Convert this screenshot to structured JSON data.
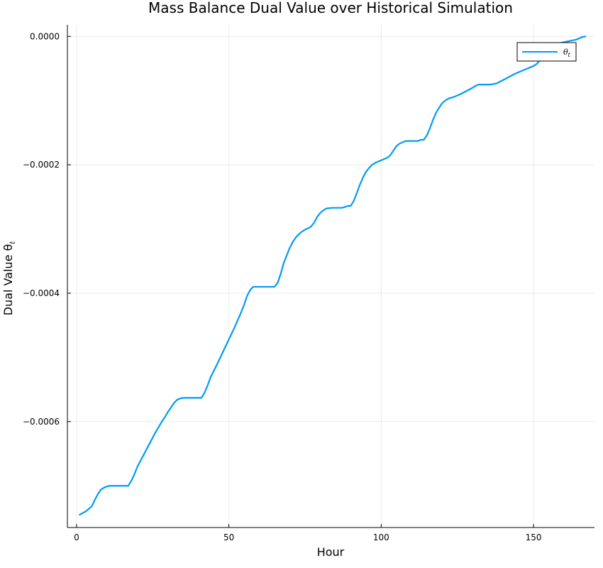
{
  "chart_data": {
    "type": "line",
    "title": "Mass Balance Dual Value over Historical Simulation",
    "xlabel": "Hour",
    "ylabel": "Dual Value θ",
    "ylabel_sub": "t",
    "xlim": [
      -3,
      170
    ],
    "ylim": [
      -0.000765,
      1.8e-05
    ],
    "grid": true,
    "legend_position": "top-right",
    "x_ticks": [
      0,
      50,
      100,
      150
    ],
    "x_tick_labels": [
      "0",
      "50",
      "100",
      "150"
    ],
    "y_ticks": [
      0,
      -0.0002,
      -0.0004,
      -0.0006
    ],
    "y_tick_labels": [
      "0.0000",
      "−0.0002",
      "−0.0004",
      "−0.0006"
    ],
    "series": [
      {
        "name": "θ",
        "name_sub": "t",
        "color": "#009AFA",
        "x": [
          1,
          3,
          5,
          6,
          7,
          8,
          9,
          10,
          11,
          12,
          14,
          16,
          17,
          18,
          19,
          20,
          22,
          24,
          26,
          28,
          29,
          30,
          31,
          32,
          33,
          34,
          35,
          37,
          39,
          41,
          42,
          43,
          44,
          46,
          48,
          50,
          52,
          54,
          55,
          56,
          57,
          58,
          60,
          62,
          64,
          65,
          66,
          67,
          68,
          69,
          70,
          71,
          72,
          73,
          74,
          75,
          76,
          77,
          78,
          79,
          80,
          81,
          82,
          84,
          86,
          87,
          88,
          89,
          90,
          91,
          92,
          93,
          94,
          95,
          96,
          97,
          98,
          100,
          102,
          103,
          104,
          105,
          106,
          107,
          108,
          110,
          111,
          112,
          113,
          114,
          115,
          116,
          117,
          118,
          119,
          120,
          121,
          122,
          124,
          126,
          128,
          130,
          131,
          132,
          134,
          135,
          136,
          138,
          140,
          142,
          144,
          146,
          148,
          149,
          150,
          151,
          152,
          153,
          154,
          155,
          156,
          157,
          158,
          159,
          160,
          161,
          162,
          163,
          164,
          165,
          166,
          167
        ],
        "values": [
          -0.000745,
          -0.00074,
          -0.000732,
          -0.000722,
          -0.000713,
          -0.000706,
          -0.000703,
          -0.000701,
          -0.0007,
          -0.0007,
          -0.0007,
          -0.0007,
          -0.0007,
          -0.000692,
          -0.000682,
          -0.00067,
          -0.000652,
          -0.000634,
          -0.000616,
          -0.0006,
          -0.000593,
          -0.000585,
          -0.000578,
          -0.000571,
          -0.000566,
          -0.000564,
          -0.000563,
          -0.000563,
          -0.000563,
          -0.000563,
          -0.000555,
          -0.000544,
          -0.000531,
          -0.000512,
          -0.000492,
          -0.000472,
          -0.000452,
          -0.00043,
          -0.000418,
          -0.000404,
          -0.000395,
          -0.00039,
          -0.00039,
          -0.00039,
          -0.00039,
          -0.00039,
          -0.000384,
          -0.00037,
          -0.000353,
          -0.000341,
          -0.000329,
          -0.00032,
          -0.000313,
          -0.000308,
          -0.000304,
          -0.000301,
          -0.000299,
          -0.000296,
          -0.00029,
          -0.000281,
          -0.000275,
          -0.000271,
          -0.000268,
          -0.000267,
          -0.000267,
          -0.000267,
          -0.000266,
          -0.000264,
          -0.000264,
          -0.000256,
          -0.000244,
          -0.000231,
          -0.00022,
          -0.000211,
          -0.000205,
          -0.0002,
          -0.000197,
          -0.000193,
          -0.000189,
          -0.000185,
          -0.000178,
          -0.000171,
          -0.000167,
          -0.000165,
          -0.000163,
          -0.000163,
          -0.000163,
          -0.000163,
          -0.000161,
          -0.000161,
          -0.000154,
          -0.000143,
          -0.00013,
          -0.000119,
          -0.000111,
          -0.000104,
          -0.0001,
          -9.7e-05,
          -9.4e-05,
          -9e-05,
          -8.5e-05,
          -8e-05,
          -7.7e-05,
          -7.5e-05,
          -7.5e-05,
          -7.5e-05,
          -7.5e-05,
          -7.3e-05,
          -6.8e-05,
          -6.3e-05,
          -5.8e-05,
          -5.4e-05,
          -5e-05,
          -4.8e-05,
          -4.6e-05,
          -4.3e-05,
          -3.8e-05,
          -3.4e-05,
          -3e-05,
          -2.5e-05,
          -1.9e-05,
          -1.5e-05,
          -1.2e-05,
          -1e-05,
          -9e-06,
          -8e-06,
          -7e-06,
          -6e-06,
          -5e-06,
          -3e-06,
          -1e-06,
          0
        ]
      }
    ]
  }
}
